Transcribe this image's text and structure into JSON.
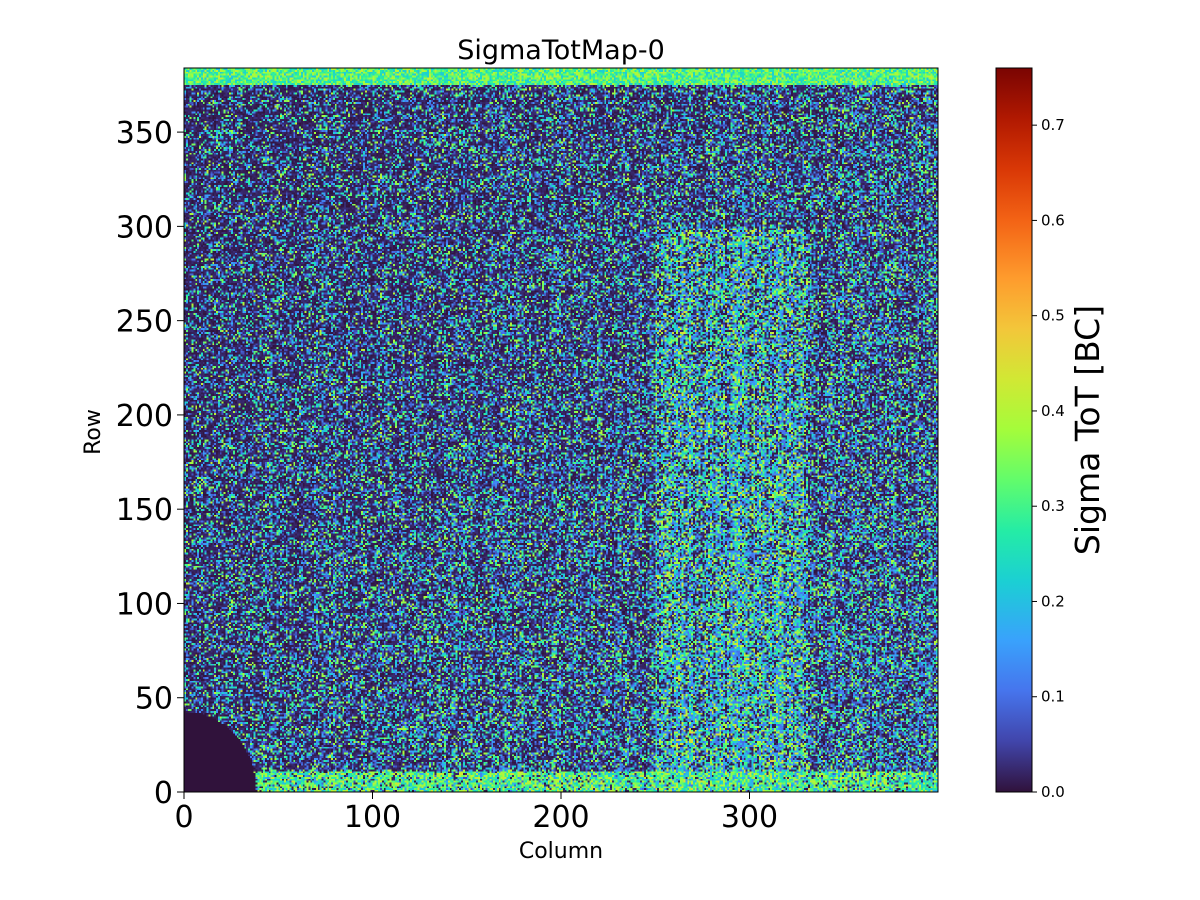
{
  "chart_data": {
    "type": "heatmap",
    "title": "SigmaTotMap-0",
    "xlabel": "Column",
    "ylabel": "Row",
    "xlim": [
      0,
      400
    ],
    "ylim": [
      0,
      384
    ],
    "x_ticks": [
      0,
      100,
      200,
      300
    ],
    "y_ticks": [
      0,
      50,
      100,
      150,
      200,
      250,
      300,
      350
    ],
    "colormap": "turbo",
    "colorbar": {
      "label": "Sigma ToT [BC]",
      "range": [
        0.0,
        0.76
      ],
      "ticks": [
        "0.0",
        "0.1",
        "0.2",
        "0.3",
        "0.4",
        "0.5",
        "0.6",
        "0.7"
      ]
    },
    "description_of_values": {
      "background_level": 0.05,
      "typical_range": [
        0.0,
        0.45
      ],
      "bright_rows_top": [
        375,
        384
      ],
      "bright_rows_bottom": [
        0,
        10
      ],
      "dead_region_bottom_left": {
        "column_max": 38,
        "row_max": 42,
        "value": 0.0
      },
      "elevated_band_columns": [
        250,
        330
      ]
    }
  }
}
